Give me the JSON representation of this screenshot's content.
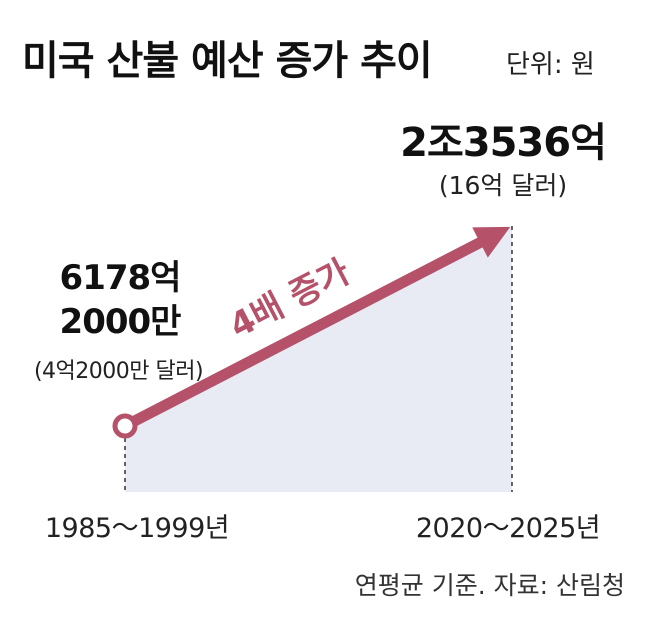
{
  "header": {
    "title": "미국 산불 예산 증가 추이",
    "unit": "단위: 원"
  },
  "chart_data": {
    "type": "area",
    "categories": [
      "1985～1999년",
      "2020～2025년"
    ],
    "values": [
      617820000000,
      2353600000000
    ],
    "value_labels": [
      {
        "main_line1": "6178억",
        "main_line2": "2000만",
        "sub": "(4억2000만 달러)"
      },
      {
        "main": "2조3536억",
        "sub": "(16억 달러)"
      }
    ],
    "annotation": "4배 증가",
    "colors": {
      "arrow": "#b5526a",
      "area": "#e8ebf4",
      "marker_fill": "#ffffff"
    }
  },
  "footer": {
    "source": "연평균 기준. 자료: 산림청"
  }
}
